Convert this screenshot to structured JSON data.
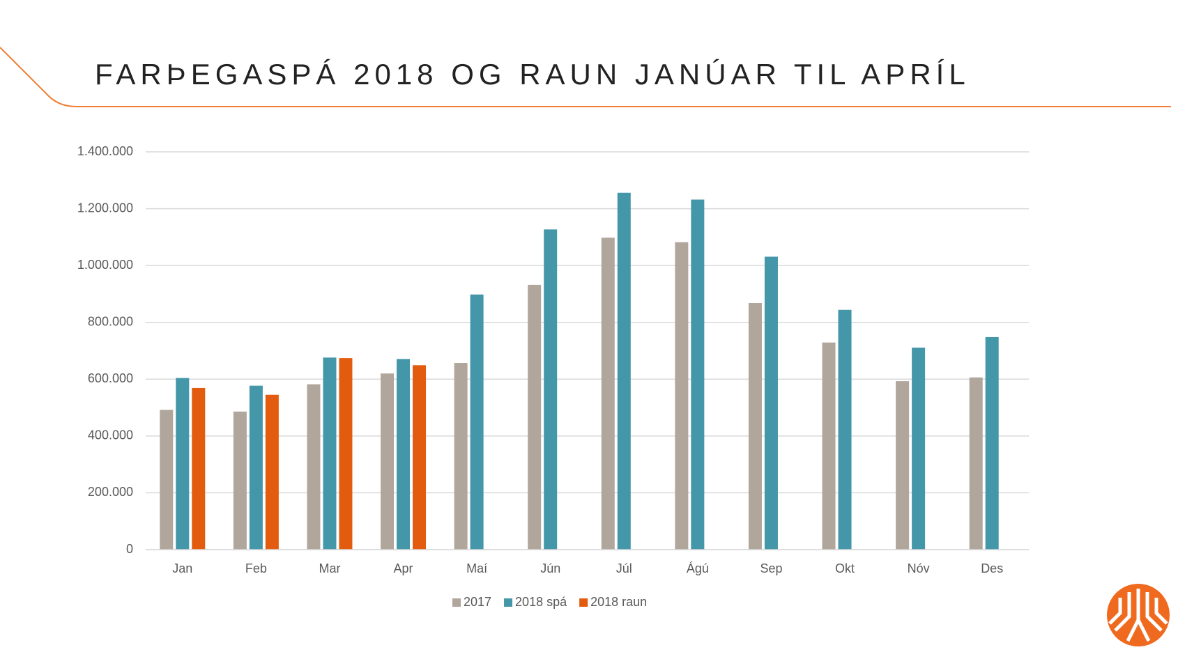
{
  "chart_data": {
    "type": "bar",
    "title": "FARÞEGASPÁ 2018 OG RAUN JANÚAR TIL APRÍL",
    "categories": [
      "Jan",
      "Feb",
      "Mar",
      "Apr",
      "Maí",
      "Jún",
      "Júl",
      "Ágú",
      "Sep",
      "Okt",
      "Nóv",
      "Des"
    ],
    "series": [
      {
        "name": "2017",
        "color": "#b0a69b",
        "values": [
          492000,
          486000,
          582000,
          620000,
          657000,
          932000,
          1098000,
          1082000,
          868000,
          729000,
          593000,
          606000
        ]
      },
      {
        "name": "2018 spá",
        "color": "#4496a9",
        "values": [
          604000,
          577000,
          676000,
          671000,
          898000,
          1127000,
          1256000,
          1232000,
          1031000,
          844000,
          711000,
          748000
        ]
      },
      {
        "name": "2018 raun",
        "color": "#e35b0e",
        "values": [
          569000,
          545000,
          674000,
          649000,
          null,
          null,
          null,
          null,
          null,
          null,
          null,
          null
        ]
      }
    ],
    "ylim": [
      0,
      1400000
    ],
    "yticks": [
      0,
      {
        "value": 200000,
        "label": "200.000"
      },
      {
        "value": 400000,
        "label": "400.000"
      },
      {
        "value": 600000,
        "label": "600.000"
      },
      {
        "value": 800000,
        "label": "800.000"
      },
      {
        "value": 1000000,
        "label": "1.000.000"
      },
      {
        "value": 1200000,
        "label": "1.200.000"
      },
      {
        "value": 1400000,
        "label": "1.400.000"
      }
    ],
    "grid": true,
    "legend": "bottom"
  }
}
